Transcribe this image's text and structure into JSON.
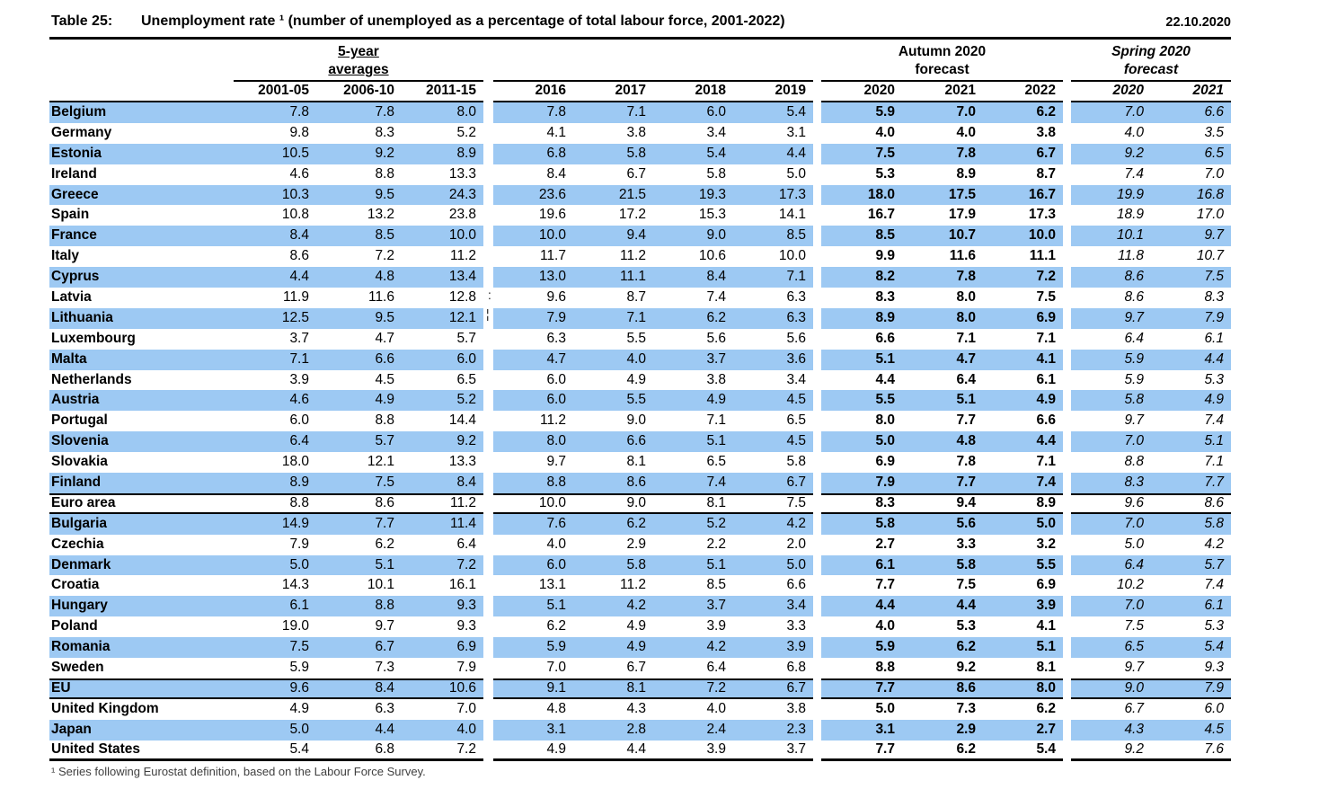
{
  "header": {
    "table_label": "Table 25:",
    "title": "Unemployment rate ¹ (number of unemployed as a percentage of total labour force, 2001-2022)",
    "date": "22.10.2020"
  },
  "column_groups": {
    "five_year_averages": {
      "line1": "5-year",
      "line2": "averages"
    },
    "autumn_forecast": {
      "line1": "Autumn 2020",
      "line2": "forecast"
    },
    "spring_forecast": {
      "line1": "Spring 2020",
      "line2": "forecast"
    }
  },
  "columns": {
    "five_year": [
      "2001-05",
      "2006-10",
      "2011-15"
    ],
    "actual": [
      "2016",
      "2017",
      "2018",
      "2019"
    ],
    "autumn": [
      "2020",
      "2021",
      "2022"
    ],
    "spring": [
      "2020",
      "2021"
    ]
  },
  "rows": [
    {
      "country": "Belgium",
      "five_year": [
        "7.8",
        "7.8",
        "8.0"
      ],
      "actual": [
        "7.8",
        "7.1",
        "6.0",
        "5.4"
      ],
      "autumn": [
        "5.9",
        "7.0",
        "6.2"
      ],
      "spring": [
        "7.0",
        "6.6"
      ]
    },
    {
      "country": "Germany",
      "five_year": [
        "9.8",
        "8.3",
        "5.2"
      ],
      "actual": [
        "4.1",
        "3.8",
        "3.4",
        "3.1"
      ],
      "autumn": [
        "4.0",
        "4.0",
        "3.8"
      ],
      "spring": [
        "4.0",
        "3.5"
      ]
    },
    {
      "country": "Estonia",
      "five_year": [
        "10.5",
        "9.2",
        "8.9"
      ],
      "actual": [
        "6.8",
        "5.8",
        "5.4",
        "4.4"
      ],
      "autumn": [
        "7.5",
        "7.8",
        "6.7"
      ],
      "spring": [
        "9.2",
        "6.5"
      ]
    },
    {
      "country": "Ireland",
      "five_year": [
        "4.6",
        "8.8",
        "13.3"
      ],
      "actual": [
        "8.4",
        "6.7",
        "5.8",
        "5.0"
      ],
      "autumn": [
        "5.3",
        "8.9",
        "8.7"
      ],
      "spring": [
        "7.4",
        "7.0"
      ]
    },
    {
      "country": "Greece",
      "five_year": [
        "10.3",
        "9.5",
        "24.3"
      ],
      "actual": [
        "23.6",
        "21.5",
        "19.3",
        "17.3"
      ],
      "autumn": [
        "18.0",
        "17.5",
        "16.7"
      ],
      "spring": [
        "19.9",
        "16.8"
      ]
    },
    {
      "country": "Spain",
      "five_year": [
        "10.8",
        "13.2",
        "23.8"
      ],
      "actual": [
        "19.6",
        "17.2",
        "15.3",
        "14.1"
      ],
      "autumn": [
        "16.7",
        "17.9",
        "17.3"
      ],
      "spring": [
        "18.9",
        "17.0"
      ]
    },
    {
      "country": "France",
      "five_year": [
        "8.4",
        "8.5",
        "10.0"
      ],
      "actual": [
        "10.0",
        "9.4",
        "9.0",
        "8.5"
      ],
      "autumn": [
        "8.5",
        "10.7",
        "10.0"
      ],
      "spring": [
        "10.1",
        "9.7"
      ]
    },
    {
      "country": "Italy",
      "five_year": [
        "8.6",
        "7.2",
        "11.2"
      ],
      "actual": [
        "11.7",
        "11.2",
        "10.6",
        "10.0"
      ],
      "autumn": [
        "9.9",
        "11.6",
        "11.1"
      ],
      "spring": [
        "11.8",
        "10.7"
      ]
    },
    {
      "country": "Cyprus",
      "five_year": [
        "4.4",
        "4.8",
        "13.4"
      ],
      "actual": [
        "13.0",
        "11.1",
        "8.4",
        "7.1"
      ],
      "autumn": [
        "8.2",
        "7.8",
        "7.2"
      ],
      "spring": [
        "8.6",
        "7.5"
      ]
    },
    {
      "country": "Latvia",
      "five_year": [
        "11.9",
        "11.6",
        "12.8"
      ],
      "actual": [
        "9.6",
        "8.7",
        "7.4",
        "6.3"
      ],
      "autumn": [
        "8.3",
        "8.0",
        "7.5"
      ],
      "spring": [
        "8.6",
        "8.3"
      ]
    },
    {
      "country": "Lithuania",
      "five_year": [
        "12.5",
        "9.5",
        "12.1"
      ],
      "actual": [
        "7.9",
        "7.1",
        "6.2",
        "6.3"
      ],
      "autumn": [
        "8.9",
        "8.0",
        "6.9"
      ],
      "spring": [
        "9.7",
        "7.9"
      ]
    },
    {
      "country": "Luxembourg",
      "five_year": [
        "3.7",
        "4.7",
        "5.7"
      ],
      "actual": [
        "6.3",
        "5.5",
        "5.6",
        "5.6"
      ],
      "autumn": [
        "6.6",
        "7.1",
        "7.1"
      ],
      "spring": [
        "6.4",
        "6.1"
      ]
    },
    {
      "country": "Malta",
      "five_year": [
        "7.1",
        "6.6",
        "6.0"
      ],
      "actual": [
        "4.7",
        "4.0",
        "3.7",
        "3.6"
      ],
      "autumn": [
        "5.1",
        "4.7",
        "4.1"
      ],
      "spring": [
        "5.9",
        "4.4"
      ]
    },
    {
      "country": "Netherlands",
      "five_year": [
        "3.9",
        "4.5",
        "6.5"
      ],
      "actual": [
        "6.0",
        "4.9",
        "3.8",
        "3.4"
      ],
      "autumn": [
        "4.4",
        "6.4",
        "6.1"
      ],
      "spring": [
        "5.9",
        "5.3"
      ]
    },
    {
      "country": "Austria",
      "five_year": [
        "4.6",
        "4.9",
        "5.2"
      ],
      "actual": [
        "6.0",
        "5.5",
        "4.9",
        "4.5"
      ],
      "autumn": [
        "5.5",
        "5.1",
        "4.9"
      ],
      "spring": [
        "5.8",
        "4.9"
      ]
    },
    {
      "country": "Portugal",
      "five_year": [
        "6.0",
        "8.8",
        "14.4"
      ],
      "actual": [
        "11.2",
        "9.0",
        "7.1",
        "6.5"
      ],
      "autumn": [
        "8.0",
        "7.7",
        "6.6"
      ],
      "spring": [
        "9.7",
        "7.4"
      ]
    },
    {
      "country": "Slovenia",
      "five_year": [
        "6.4",
        "5.7",
        "9.2"
      ],
      "actual": [
        "8.0",
        "6.6",
        "5.1",
        "4.5"
      ],
      "autumn": [
        "5.0",
        "4.8",
        "4.4"
      ],
      "spring": [
        "7.0",
        "5.1"
      ]
    },
    {
      "country": "Slovakia",
      "five_year": [
        "18.0",
        "12.1",
        "13.3"
      ],
      "actual": [
        "9.7",
        "8.1",
        "6.5",
        "5.8"
      ],
      "autumn": [
        "6.9",
        "7.8",
        "7.1"
      ],
      "spring": [
        "8.8",
        "7.1"
      ]
    },
    {
      "country": "Finland",
      "five_year": [
        "8.9",
        "7.5",
        "8.4"
      ],
      "actual": [
        "8.8",
        "8.6",
        "7.4",
        "6.7"
      ],
      "autumn": [
        "7.9",
        "7.7",
        "7.4"
      ],
      "spring": [
        "8.3",
        "7.7"
      ]
    },
    {
      "country": "Euro area",
      "aggregate": true,
      "five_year": [
        "8.8",
        "8.6",
        "11.2"
      ],
      "actual": [
        "10.0",
        "9.0",
        "8.1",
        "7.5"
      ],
      "autumn": [
        "8.3",
        "9.4",
        "8.9"
      ],
      "spring": [
        "9.6",
        "8.6"
      ]
    },
    {
      "country": "Bulgaria",
      "five_year": [
        "14.9",
        "7.7",
        "11.4"
      ],
      "actual": [
        "7.6",
        "6.2",
        "5.2",
        "4.2"
      ],
      "autumn": [
        "5.8",
        "5.6",
        "5.0"
      ],
      "spring": [
        "7.0",
        "5.8"
      ]
    },
    {
      "country": "Czechia",
      "five_year": [
        "7.9",
        "6.2",
        "6.4"
      ],
      "actual": [
        "4.0",
        "2.9",
        "2.2",
        "2.0"
      ],
      "autumn": [
        "2.7",
        "3.3",
        "3.2"
      ],
      "spring": [
        "5.0",
        "4.2"
      ]
    },
    {
      "country": "Denmark",
      "five_year": [
        "5.0",
        "5.1",
        "7.2"
      ],
      "actual": [
        "6.0",
        "5.8",
        "5.1",
        "5.0"
      ],
      "autumn": [
        "6.1",
        "5.8",
        "5.5"
      ],
      "spring": [
        "6.4",
        "5.7"
      ]
    },
    {
      "country": "Croatia",
      "five_year": [
        "14.3",
        "10.1",
        "16.1"
      ],
      "actual": [
        "13.1",
        "11.2",
        "8.5",
        "6.6"
      ],
      "autumn": [
        "7.7",
        "7.5",
        "6.9"
      ],
      "spring": [
        "10.2",
        "7.4"
      ]
    },
    {
      "country": "Hungary",
      "five_year": [
        "6.1",
        "8.8",
        "9.3"
      ],
      "actual": [
        "5.1",
        "4.2",
        "3.7",
        "3.4"
      ],
      "autumn": [
        "4.4",
        "4.4",
        "3.9"
      ],
      "spring": [
        "7.0",
        "6.1"
      ]
    },
    {
      "country": "Poland",
      "five_year": [
        "19.0",
        "9.7",
        "9.3"
      ],
      "actual": [
        "6.2",
        "4.9",
        "3.9",
        "3.3"
      ],
      "autumn": [
        "4.0",
        "5.3",
        "4.1"
      ],
      "spring": [
        "7.5",
        "5.3"
      ]
    },
    {
      "country": "Romania",
      "five_year": [
        "7.5",
        "6.7",
        "6.9"
      ],
      "actual": [
        "5.9",
        "4.9",
        "4.2",
        "3.9"
      ],
      "autumn": [
        "5.9",
        "6.2",
        "5.1"
      ],
      "spring": [
        "6.5",
        "5.4"
      ]
    },
    {
      "country": "Sweden",
      "five_year": [
        "5.9",
        "7.3",
        "7.9"
      ],
      "actual": [
        "7.0",
        "6.7",
        "6.4",
        "6.8"
      ],
      "autumn": [
        "8.8",
        "9.2",
        "8.1"
      ],
      "spring": [
        "9.7",
        "9.3"
      ]
    },
    {
      "country": "EU",
      "aggregate": true,
      "five_year": [
        "9.6",
        "8.4",
        "10.6"
      ],
      "actual": [
        "9.1",
        "8.1",
        "7.2",
        "6.7"
      ],
      "autumn": [
        "7.7",
        "8.6",
        "8.0"
      ],
      "spring": [
        "9.0",
        "7.9"
      ]
    },
    {
      "country": "United Kingdom",
      "five_year": [
        "4.9",
        "6.3",
        "7.0"
      ],
      "actual": [
        "4.8",
        "4.3",
        "4.0",
        "3.8"
      ],
      "autumn": [
        "5.0",
        "7.3",
        "6.2"
      ],
      "spring": [
        "6.7",
        "6.0"
      ]
    },
    {
      "country": "Japan",
      "five_year": [
        "5.0",
        "4.4",
        "4.0"
      ],
      "actual": [
        "3.1",
        "2.8",
        "2.4",
        "2.3"
      ],
      "autumn": [
        "3.1",
        "2.9",
        "2.7"
      ],
      "spring": [
        "4.3",
        "4.5"
      ]
    },
    {
      "country": "United States",
      "five_year": [
        "5.4",
        "6.8",
        "7.2"
      ],
      "actual": [
        "4.9",
        "4.4",
        "3.9",
        "3.7"
      ],
      "autumn": [
        "7.7",
        "6.2",
        "5.4"
      ],
      "spring": [
        "9.2",
        "7.6"
      ]
    }
  ],
  "artifacts": {
    "latvia_mark": ":",
    "lithuania_mark": "¦"
  },
  "footnote": "¹ Series following Eurostat definition, based on the Labour Force Survey.",
  "colors": {
    "row_highlight": "#9DC9F3",
    "rule": "#000000",
    "text": "#000000",
    "footnote_text": "#404040",
    "background": "#FFFFFF"
  }
}
